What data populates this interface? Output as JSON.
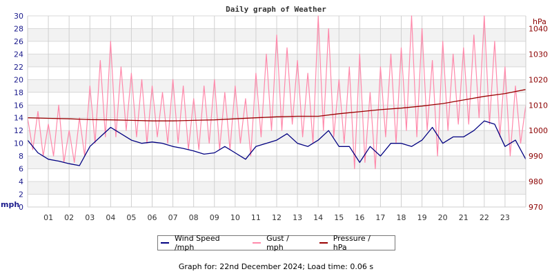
{
  "chart_data": {
    "type": "line",
    "title": "Daily graph of Weather",
    "left_axis": {
      "label": "mph",
      "ylim": [
        0,
        30
      ],
      "ticks": [
        0,
        2,
        4,
        6,
        8,
        10,
        12,
        14,
        16,
        18,
        20,
        22,
        24,
        26,
        28,
        30
      ],
      "color": "#1a1a8c"
    },
    "right_axis": {
      "label": "hPa",
      "ylim": [
        970,
        1045
      ],
      "ticks": [
        970,
        980,
        990,
        1000,
        1010,
        1020,
        1030,
        1040
      ],
      "color": "#8b0000"
    },
    "x_axis": {
      "unit": "hour",
      "range": [
        0,
        24
      ],
      "tick_labels": [
        "01",
        "02",
        "03",
        "04",
        "05",
        "06",
        "07",
        "08",
        "09",
        "10",
        "11",
        "12",
        "13",
        "14",
        "15",
        "16",
        "17",
        "18",
        "19",
        "20",
        "21",
        "22",
        "23"
      ]
    },
    "grid": true,
    "legend_position": "bottom",
    "series": [
      {
        "name": "Wind Speed /mph",
        "axis": "left",
        "color": "#000080",
        "step_hours": 0.5,
        "values": [
          10.5,
          8.5,
          7.5,
          7.2,
          6.8,
          6.5,
          9.5,
          11,
          12.5,
          11.5,
          10.5,
          10,
          10.2,
          10,
          9.5,
          9.2,
          8.8,
          8.3,
          8.5,
          9.5,
          8.5,
          7.5,
          9.5,
          10,
          10.5,
          11.5,
          10,
          9.5,
          10.5,
          12,
          9.5,
          9.5,
          7,
          9.5,
          8,
          10,
          10,
          9.5,
          10.5,
          12.5,
          10,
          11,
          11,
          12,
          13.5,
          13,
          9.5,
          10.5,
          7.5
        ]
      },
      {
        "name": "Gust / mph",
        "axis": "left",
        "color": "#ff88aa",
        "step_hours": 0.25,
        "values": [
          14,
          9,
          15,
          8,
          13,
          8,
          16,
          7,
          12,
          7,
          14,
          8,
          19,
          10,
          23,
          11,
          26,
          11,
          22,
          12,
          21,
          11,
          20,
          10,
          19,
          11,
          18,
          10,
          20,
          10,
          19,
          9,
          17,
          9,
          19,
          10,
          20,
          9,
          18,
          9,
          19,
          10,
          17,
          8,
          21,
          11,
          24,
          12,
          27,
          12,
          25,
          13,
          23,
          11,
          21,
          10,
          30,
          12,
          28,
          11,
          20,
          10,
          22,
          6,
          24,
          7,
          18,
          6,
          22,
          11,
          24,
          10,
          25,
          12,
          30,
          11,
          28,
          12,
          23,
          8,
          26,
          12,
          24,
          13,
          25,
          13,
          27,
          14,
          30,
          13,
          26,
          11,
          22,
          8,
          19,
          10,
          16
        ]
      },
      {
        "name": "Pressure / hPa",
        "axis": "right",
        "color": "#990000",
        "step_hours": 1,
        "values": [
          1005,
          1004.8,
          1004.6,
          1004.3,
          1004.2,
          1004.0,
          1003.8,
          1003.8,
          1004.0,
          1004.2,
          1004.6,
          1005,
          1005.4,
          1005.6,
          1005.6,
          1006.6,
          1007.4,
          1008.2,
          1008.8,
          1009.6,
          1010.6,
          1012,
          1013.4,
          1014.5,
          1016.1
        ]
      }
    ]
  },
  "footer": "Graph for: 22nd December 2024; Load time: 0.06 s"
}
